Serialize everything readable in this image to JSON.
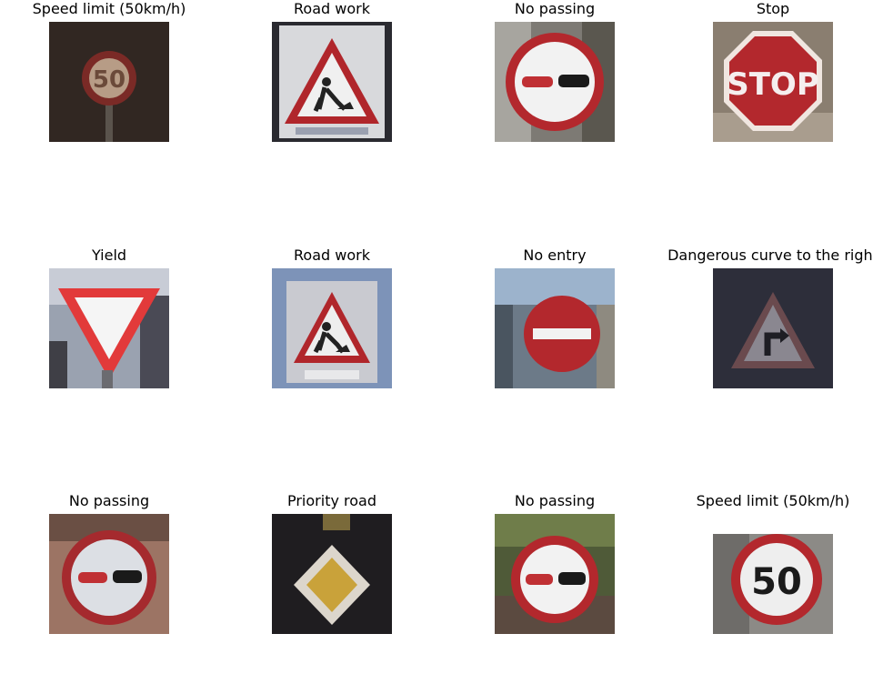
{
  "figure": {
    "panels": [
      {
        "title": "Speed limit (50km/h)",
        "icon": "speed-limit-50-sign"
      },
      {
        "title": "Road work",
        "icon": "road-work-sign"
      },
      {
        "title": "No passing",
        "icon": "no-passing-sign"
      },
      {
        "title": "Stop",
        "icon": "stop-sign"
      },
      {
        "title": "Yield",
        "icon": "yield-sign"
      },
      {
        "title": "Road work",
        "icon": "road-work-sign"
      },
      {
        "title": "No entry",
        "icon": "no-entry-sign"
      },
      {
        "title": "Dangerous curve to the right",
        "icon": "dangerous-curve-right-sign"
      },
      {
        "title": "No passing",
        "icon": "no-passing-sign"
      },
      {
        "title": "Priority road",
        "icon": "priority-road-sign"
      },
      {
        "title": "No passing",
        "icon": "no-passing-sign"
      },
      {
        "title": "Speed limit (50km/h)",
        "icon": "speed-limit-50-sign"
      }
    ],
    "sign_text": {
      "speed_50": "50",
      "stop": "STOP"
    },
    "colors": {
      "sign_red": "#b3282d",
      "sign_white": "#f2f2f2",
      "sign_black": "#1a1a1a",
      "priority_yellow": "#c9a23a"
    }
  }
}
